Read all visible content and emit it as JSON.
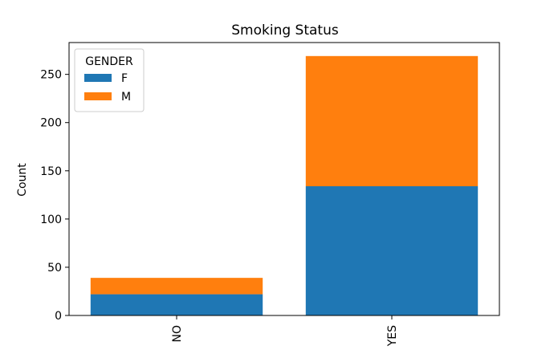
{
  "chart_data": {
    "type": "bar",
    "stacked": true,
    "title": "Smoking Status",
    "xlabel": "",
    "ylabel": "Count",
    "categories": [
      "NO",
      "YES"
    ],
    "series": [
      {
        "name": "F",
        "color": "#1f77b4",
        "values": [
          22,
          134
        ]
      },
      {
        "name": "M",
        "color": "#ff7f0e",
        "values": [
          17,
          135
        ]
      }
    ],
    "ylim": [
      0,
      283
    ],
    "yticks": [
      0,
      50,
      100,
      150,
      200,
      250
    ],
    "legend": {
      "title": "GENDER",
      "position": "top-left"
    },
    "grid": false
  }
}
